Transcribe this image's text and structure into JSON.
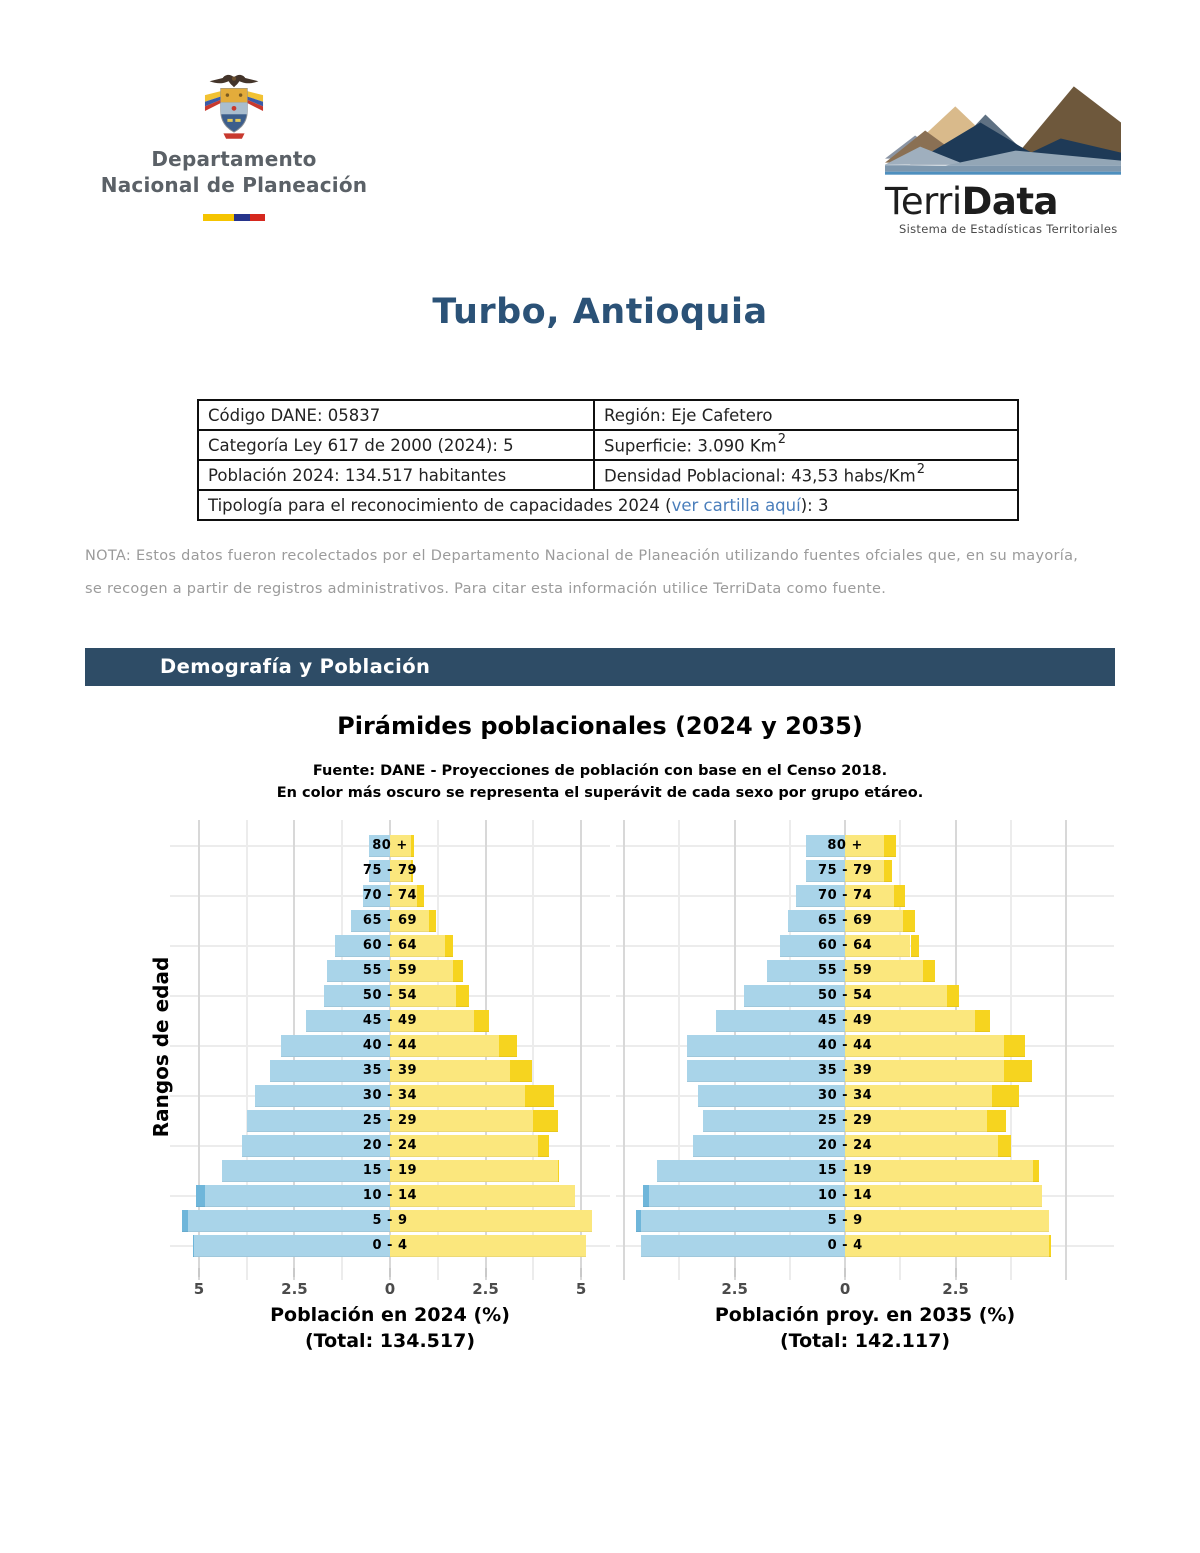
{
  "title": "Turbo, Antioquia",
  "header": {
    "dnp": {
      "line1": "Departamento",
      "line2": "Nacional de Planeación"
    },
    "terridata": {
      "brand_regular": "Terri",
      "brand_bold": "Data",
      "tagline": "Sistema de Estadísticas Territoriales"
    }
  },
  "info_table": {
    "row1_left": "Código DANE: 05837",
    "row1_right": "Región: Eje Cafetero",
    "row2_left": "Categoría Ley 617 de 2000 (2024): 5",
    "row2_right_text": "Superficie: 3.090 Km",
    "row2_right_sup": "2",
    "row3_left": "Población 2024: 134.517 habitantes",
    "row3_right_text": "Densidad Poblacional: 43,53 habs/Km",
    "row3_right_sup": "2",
    "row4_pre": "Tipología para el reconocimiento de capacidades 2024 (",
    "row4_link": "ver cartilla aquí",
    "row4_post": "): 3"
  },
  "nota": {
    "line1": "NOTA: Estos datos fueron recolectados por el Departamento Nacional de Planeación utilizando fuentes ofciales que, en su mayoría,",
    "line2": "se recogen a partir de registros administrativos. Para citar esta información utilice TerriData como fuente."
  },
  "section": {
    "title": "Demografía y Población"
  },
  "chart_data": {
    "type": "bar",
    "subtype": "population-pyramid",
    "title": "Pirámides poblacionales (2024 y 2035)",
    "subtitle_line1": "Fuente: DANE - Proyecciones de población con base en el Censo 2018.",
    "subtitle_line2": "En color más oscuro se representa el superávit de cada sexo por grupo etáreo.",
    "ylabel": "Rangos de edad",
    "age_groups": [
      "80 +",
      "75 - 79",
      "70 - 74",
      "65 - 69",
      "60 - 64",
      "55 - 59",
      "50 - 54",
      "45 - 49",
      "40 - 44",
      "35 - 39",
      "30 - 34",
      "25 - 29",
      "20 - 24",
      "15 - 19",
      "10 - 14",
      "5 - 9",
      "0 - 4"
    ],
    "pyramids": [
      {
        "name": "2024",
        "xlabel_line1": "Población en 2024 (%)",
        "xlabel_line2": "(Total: 134.517)",
        "total": "134.517",
        "axis_ticks": [
          -5,
          -2.5,
          0,
          2.5,
          5
        ],
        "xlim": [
          -5.6,
          5.6
        ],
        "male_pct": [
          0.56,
          0.55,
          0.7,
          1.02,
          1.43,
          1.64,
          1.72,
          2.19,
          2.86,
          3.15,
          3.54,
          3.75,
          3.88,
          4.4,
          5.08,
          5.44,
          5.16
        ],
        "female_pct": [
          0.62,
          0.6,
          0.89,
          1.2,
          1.64,
          1.9,
          2.08,
          2.6,
          3.33,
          3.72,
          4.29,
          4.4,
          4.17,
          4.43,
          4.84,
          5.29,
          5.14
        ]
      },
      {
        "name": "2035",
        "xlabel_line1": "Población proy. en 2035 (%)",
        "xlabel_line2": "(Total: 142.117)",
        "total": "142.117",
        "axis_ticks": [
          -2.5,
          0,
          2.5
        ],
        "xlim": [
          -5.05,
          5.95
        ],
        "male_pct": [
          0.89,
          0.88,
          1.11,
          1.3,
          1.48,
          1.77,
          2.3,
          2.93,
          3.59,
          3.59,
          3.33,
          3.21,
          3.45,
          4.25,
          4.57,
          4.73,
          4.62
        ],
        "female_pct": [
          1.16,
          1.06,
          1.35,
          1.59,
          1.68,
          2.03,
          2.58,
          3.28,
          4.08,
          4.23,
          3.93,
          3.64,
          3.76,
          4.38,
          4.45,
          4.62,
          4.66
        ]
      }
    ],
    "colors": {
      "male": "#A9D4E9",
      "male_surplus": "#6FB6DA",
      "female": "#FBE77D",
      "female_surplus": "#F6D41F",
      "grid": "#ECECEC",
      "grid_major": "#D8D8D8",
      "tick": "#C9C9C9"
    },
    "grid": {
      "v_step": 1.25,
      "v_major_step": 2.5,
      "h_every_n_rows": 2
    }
  }
}
